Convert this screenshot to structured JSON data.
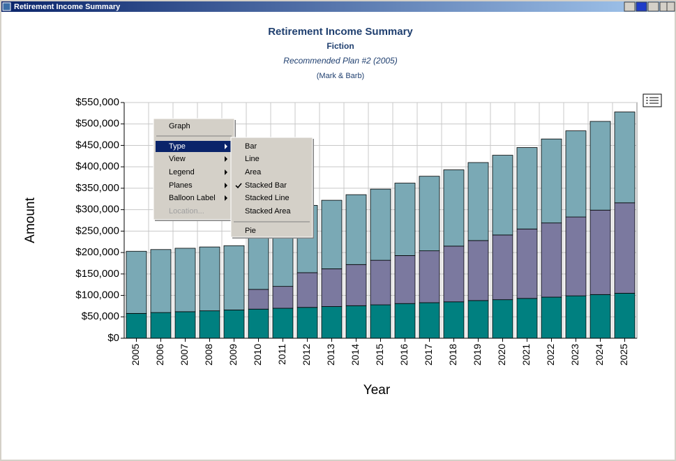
{
  "window": {
    "title": "Retirement Income Summary"
  },
  "menu": {
    "items": [
      "Graph",
      "Type",
      "View",
      "Legend",
      "Planes",
      "Balloon Label",
      "Location..."
    ],
    "submenu": [
      "Bar",
      "Line",
      "Area",
      "Stacked Bar",
      "Stacked Line",
      "Stacked Area",
      "Pie"
    ]
  },
  "chart_data": {
    "type": "stacked_bar",
    "title": "Retirement Income Summary",
    "subtitle": "Fiction",
    "plan": "Recommended Plan #2 (2005)",
    "client": "(Mark & Barb)",
    "x_label": "Year",
    "y_label": "Amount",
    "categories": [
      "2005",
      "2006",
      "2007",
      "2008",
      "2009",
      "2010",
      "2011",
      "2012",
      "2013",
      "2014",
      "2015",
      "2016",
      "2017",
      "2018",
      "2019",
      "2020",
      "2021",
      "2022",
      "2023",
      "2024",
      "2025"
    ],
    "series": [
      {
        "color": "#008080",
        "values": [
          58000,
          60000,
          62000,
          64000,
          66000,
          68000,
          70000,
          72000,
          74000,
          76000,
          78000,
          81000,
          83000,
          85000,
          88000,
          90000,
          93000,
          96000,
          99000,
          102000,
          105000
        ]
      },
      {
        "color": "#7b799f",
        "values": [
          0,
          0,
          0,
          0,
          0,
          46000,
          51000,
          81000,
          88000,
          96000,
          104000,
          112000,
          121000,
          130000,
          140000,
          151000,
          162000,
          173000,
          184000,
          197000,
          211000
        ]
      },
      {
        "color": "#7aa9b5",
        "values": [
          145000,
          147000,
          148000,
          149000,
          150000,
          148000,
          169000,
          157000,
          160000,
          163000,
          166000,
          169000,
          174000,
          178000,
          182000,
          186000,
          190000,
          196000,
          201000,
          207000,
          212000
        ]
      }
    ],
    "ylim": [
      0,
      550000
    ],
    "yticks": [
      {
        "value": 0,
        "label": "$0"
      },
      {
        "value": 50000,
        "label": "$50,000"
      },
      {
        "value": 100000,
        "label": "$100,000"
      },
      {
        "value": 150000,
        "label": "$150,000"
      },
      {
        "value": 200000,
        "label": "$200,000"
      },
      {
        "value": 250000,
        "label": "$250,000"
      },
      {
        "value": 300000,
        "label": "$300,000"
      },
      {
        "value": 350000,
        "label": "$350,000"
      },
      {
        "value": 400000,
        "label": "$400,000"
      },
      {
        "value": 450000,
        "label": "$450,000"
      },
      {
        "value": 500000,
        "label": "$500,000"
      },
      {
        "value": 550000,
        "label": "$550,000"
      }
    ],
    "grid": true
  }
}
